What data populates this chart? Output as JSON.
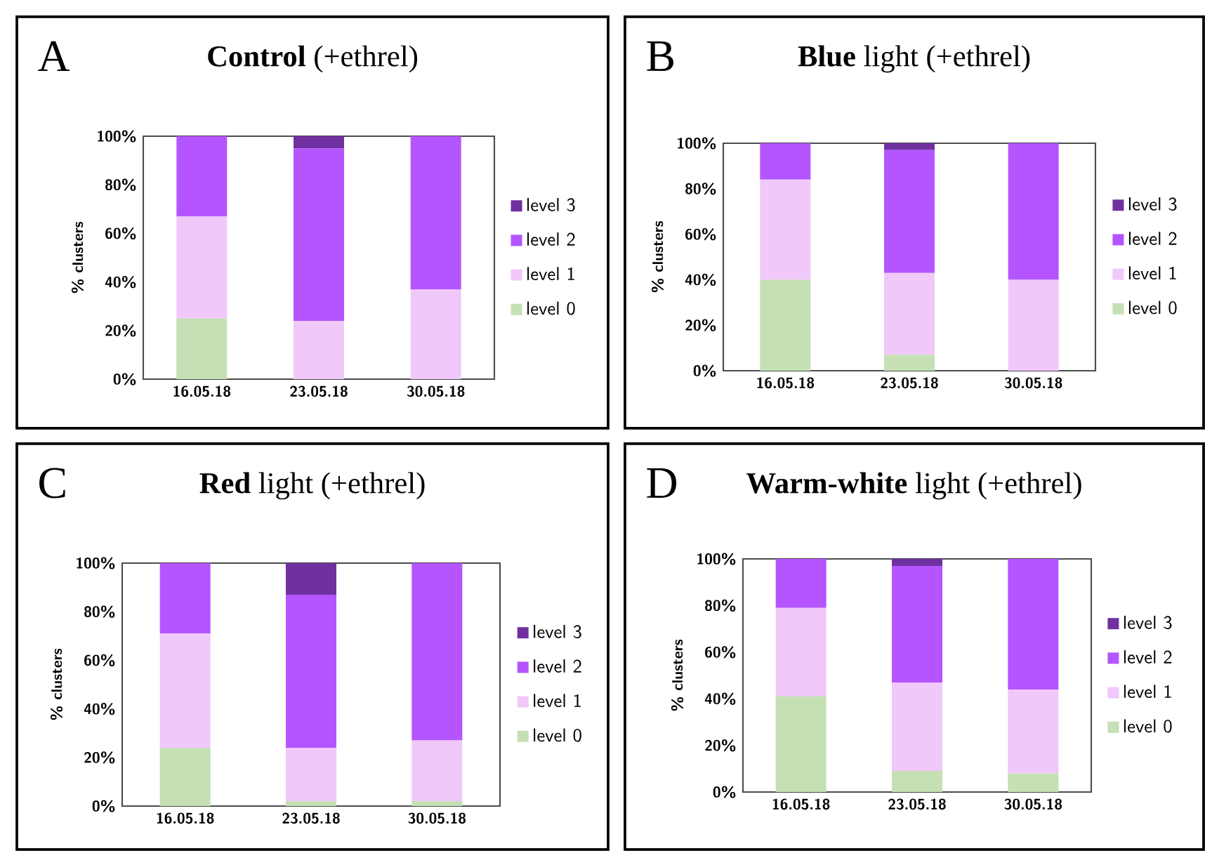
{
  "chart_data": [
    {
      "type": "bar",
      "stacked": true,
      "title": "**Control** (+ethrel)",
      "annotations": [
        "A"
      ],
      "ylabel": "% clusters",
      "categories": [
        "16.05.18",
        "23.05.18",
        "30.05.18"
      ],
      "ylim": [
        0,
        100
      ],
      "yticks": [
        {
          "value": 0,
          "label": "0%"
        },
        {
          "value": 20,
          "label": "20%"
        },
        {
          "value": 40,
          "label": "40%"
        },
        {
          "value": 60,
          "label": "60%"
        },
        {
          "value": 80,
          "label": "80%"
        },
        {
          "value": 100,
          "label": "100%"
        }
      ],
      "legend": "right",
      "series": [
        {
          "name": "level 0",
          "color": "#c5e0b4",
          "values": [
            25,
            0,
            0
          ]
        },
        {
          "name": "level 1",
          "color": "#f0c8fa",
          "values": [
            42,
            24,
            37
          ]
        },
        {
          "name": "level 2",
          "color": "#b455ff",
          "values": [
            33,
            71,
            63
          ]
        },
        {
          "name": "level 3",
          "color": "#7030a0",
          "values": [
            0,
            5,
            0
          ]
        }
      ]
    },
    {
      "type": "bar",
      "stacked": true,
      "title": "**Blue** light (+ethrel)",
      "annotations": [
        "B"
      ],
      "ylabel": "% clusters",
      "categories": [
        "16.05.18",
        "23.05.18",
        "30.05.18"
      ],
      "ylim": [
        0,
        100
      ],
      "yticks": [
        {
          "value": 0,
          "label": "0%"
        },
        {
          "value": 20,
          "label": "20%"
        },
        {
          "value": 40,
          "label": "40%"
        },
        {
          "value": 60,
          "label": "60%"
        },
        {
          "value": 80,
          "label": "80%"
        },
        {
          "value": 100,
          "label": "100%"
        }
      ],
      "legend": "right",
      "series": [
        {
          "name": "level 0",
          "color": "#c5e0b4",
          "values": [
            40,
            7,
            0
          ]
        },
        {
          "name": "level 1",
          "color": "#f0c8fa",
          "values": [
            44,
            36,
            40
          ]
        },
        {
          "name": "level 2",
          "color": "#b455ff",
          "values": [
            16,
            54,
            60
          ]
        },
        {
          "name": "level 3",
          "color": "#7030a0",
          "values": [
            0,
            3,
            0
          ]
        }
      ]
    },
    {
      "type": "bar",
      "stacked": true,
      "title": "**Red** light (+ethrel)",
      "annotations": [
        "C"
      ],
      "ylabel": "% clusters",
      "categories": [
        "16.05.18",
        "23.05.18",
        "30.05.18"
      ],
      "ylim": [
        0,
        100
      ],
      "yticks": [
        {
          "value": 0,
          "label": "0%"
        },
        {
          "value": 20,
          "label": "20%"
        },
        {
          "value": 40,
          "label": "40%"
        },
        {
          "value": 60,
          "label": "60%"
        },
        {
          "value": 80,
          "label": "80%"
        },
        {
          "value": 100,
          "label": "100%"
        }
      ],
      "legend": "right",
      "series": [
        {
          "name": "level 0",
          "color": "#c5e0b4",
          "values": [
            24,
            2,
            2
          ]
        },
        {
          "name": "level 1",
          "color": "#f0c8fa",
          "values": [
            47,
            22,
            25
          ]
        },
        {
          "name": "level 2",
          "color": "#b455ff",
          "values": [
            29,
            63,
            73
          ]
        },
        {
          "name": "level 3",
          "color": "#7030a0",
          "values": [
            0,
            13,
            0
          ]
        }
      ]
    },
    {
      "type": "bar",
      "stacked": true,
      "title": "**Warm-white** light (+ethrel)",
      "annotations": [
        "D"
      ],
      "ylabel": "% clusters",
      "categories": [
        "16.05.18",
        "23.05.18",
        "30.05.18"
      ],
      "ylim": [
        0,
        100
      ],
      "yticks": [
        {
          "value": 0,
          "label": "0%"
        },
        {
          "value": 20,
          "label": "20%"
        },
        {
          "value": 40,
          "label": "40%"
        },
        {
          "value": 60,
          "label": "60%"
        },
        {
          "value": 80,
          "label": "80%"
        },
        {
          "value": 100,
          "label": "100%"
        }
      ],
      "legend": "right",
      "series": [
        {
          "name": "level 0",
          "color": "#c5e0b4",
          "values": [
            41,
            9,
            8
          ]
        },
        {
          "name": "level 1",
          "color": "#f0c8fa",
          "values": [
            38,
            38,
            36
          ]
        },
        {
          "name": "level 2",
          "color": "#b455ff",
          "values": [
            21,
            50,
            56
          ]
        },
        {
          "name": "level 3",
          "color": "#7030a0",
          "values": [
            0,
            3,
            0
          ]
        }
      ]
    }
  ]
}
